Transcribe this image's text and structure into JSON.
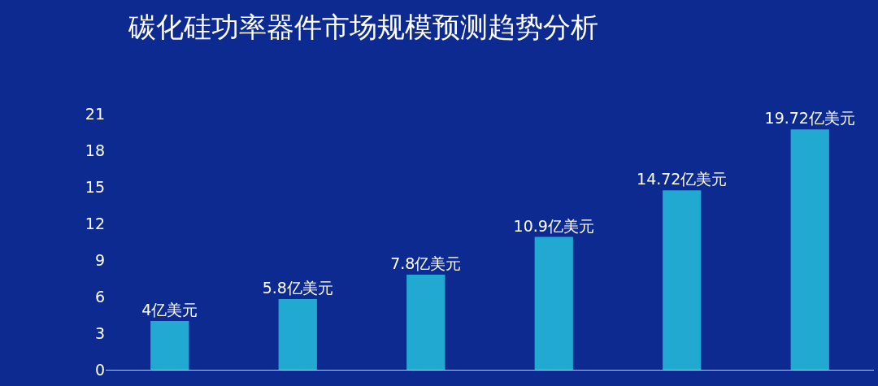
{
  "chart_data": {
    "type": "bar",
    "title": "碳化硅功率器件市场规模预测趋势分析",
    "categories": [
      null,
      null,
      null,
      null,
      null,
      null
    ],
    "values": [
      4,
      5.8,
      7.8,
      10.9,
      14.72,
      19.72
    ],
    "value_labels": [
      "4亿美元",
      "5.8亿美元",
      "7.8亿美元",
      "10.9亿美元",
      "14.72亿美元",
      "19.72亿美元"
    ],
    "color": "#22a9d2",
    "ylim": [
      0,
      21
    ],
    "yticks": [
      0,
      3,
      6,
      9,
      12,
      15,
      18,
      21
    ],
    "grid": false,
    "tick_labels": "y"
  }
}
